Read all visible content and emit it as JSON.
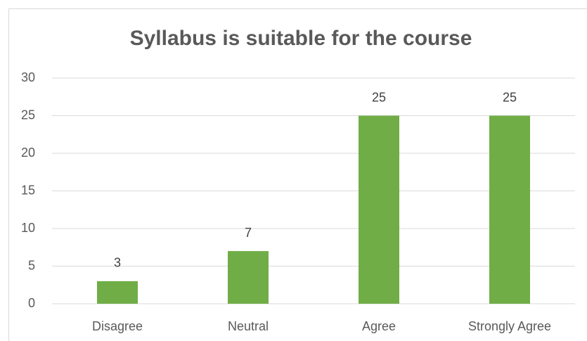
{
  "chart_data": {
    "type": "bar",
    "title": "Syllabus is suitable for the course",
    "categories": [
      "Disagree",
      "Neutral",
      "Agree",
      "Strongly Agree"
    ],
    "values": [
      3,
      7,
      25,
      25
    ],
    "color": "#70ad47",
    "ylim": [
      0,
      30
    ],
    "yticks": [
      0,
      5,
      10,
      15,
      20,
      25,
      30
    ],
    "grid": true,
    "data_labels": true
  }
}
